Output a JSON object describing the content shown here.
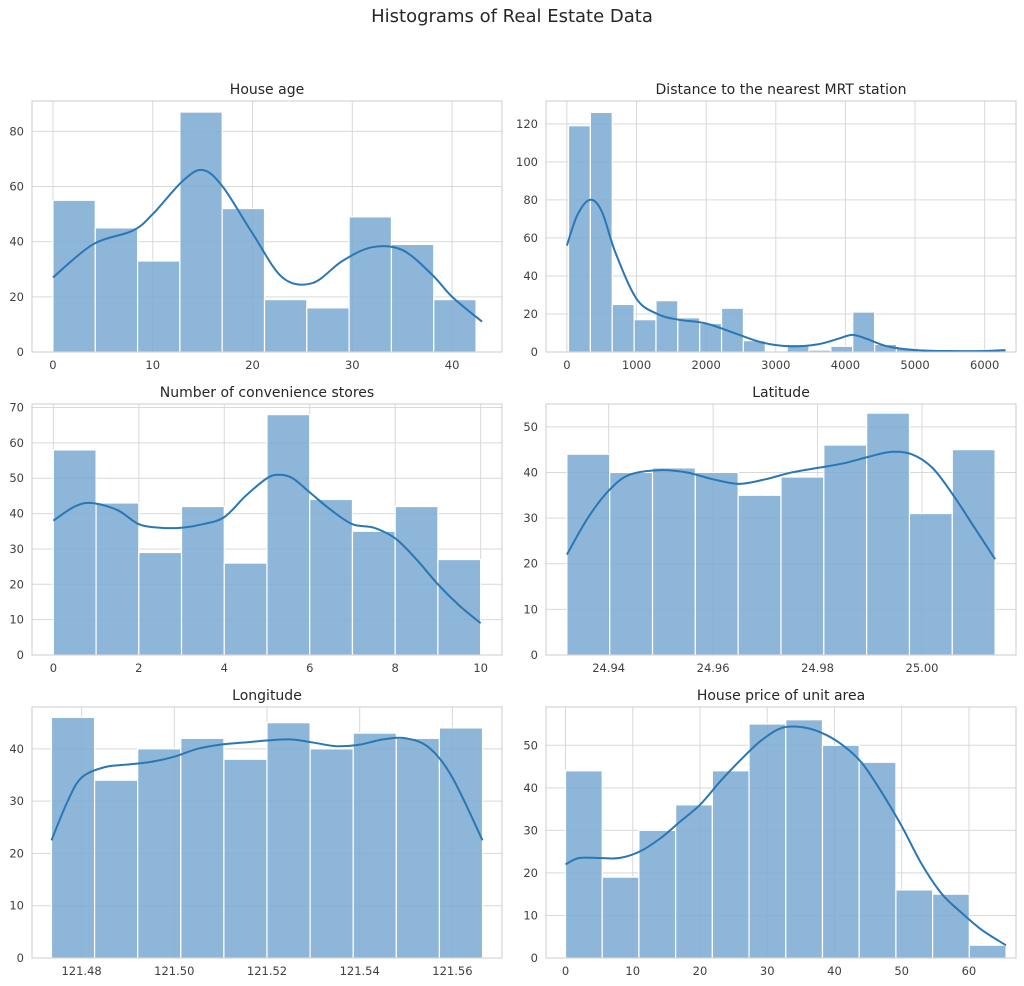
{
  "figure": {
    "title": "Histograms of Real Estate Data"
  },
  "chart_data": [
    {
      "type": "bar",
      "subtype": "histogram",
      "title": "House age",
      "xlabel": "",
      "ylabel": "",
      "xlim": [
        -2.1,
        45.0
      ],
      "ylim": [
        0,
        91
      ],
      "xticks": [
        0,
        10,
        20,
        30,
        40
      ],
      "xtick_labels": [
        "0",
        "10",
        "20",
        "30",
        "40"
      ],
      "yticks": [
        0,
        20,
        40,
        60,
        80
      ],
      "ytick_labels": [
        "0",
        "20",
        "40",
        "60",
        "80"
      ],
      "bin_edges": [
        0,
        4.24,
        8.48,
        12.72,
        16.96,
        21.2,
        25.44,
        29.68,
        33.92,
        38.16,
        42.4
      ],
      "values": [
        55,
        45,
        33,
        87,
        52,
        19,
        16,
        49,
        39,
        19
      ],
      "kde": {
        "x": [
          0,
          4,
          8,
          10,
          13,
          15,
          17,
          20,
          23,
          26,
          29,
          32,
          35,
          38,
          40,
          43
        ],
        "y": [
          27,
          39,
          44,
          50,
          62,
          66,
          60,
          43,
          27,
          25,
          33,
          38,
          37,
          28,
          20,
          11
        ]
      }
    },
    {
      "type": "bar",
      "subtype": "histogram",
      "title": "Distance to the nearest MRT station",
      "xlabel": "",
      "ylabel": "",
      "xlim": [
        -300,
        6450
      ],
      "ylim": [
        0,
        132
      ],
      "xticks": [
        0,
        1000,
        2000,
        3000,
        4000,
        5000,
        6000
      ],
      "xtick_labels": [
        "0",
        "1000",
        "2000",
        "3000",
        "4000",
        "5000",
        "6000"
      ],
      "yticks": [
        0,
        20,
        40,
        60,
        80,
        100,
        120
      ],
      "ytick_labels": [
        "0",
        "20",
        "40",
        "60",
        "80",
        "100",
        "120"
      ],
      "bin_edges": [
        23.4,
        337.4,
        651.4,
        965.4,
        1279.4,
        1593.4,
        1907.4,
        2221.4,
        2535.4,
        2849.4,
        3163.4,
        3477.4,
        3791.4,
        4105.4,
        4419.4,
        4733.4,
        5047.4,
        5361.4,
        5675.4,
        5989.4,
        6303.4
      ],
      "values": [
        119,
        126,
        25,
        17,
        27,
        18,
        15,
        23,
        6,
        0,
        4,
        1,
        3,
        21,
        4,
        2,
        0,
        0,
        0,
        1
      ],
      "kde": {
        "x": [
          0,
          150,
          330,
          500,
          700,
          1000,
          1300,
          1600,
          2000,
          2400,
          2800,
          3200,
          3600,
          3900,
          4100,
          4300,
          4600,
          5000,
          5500,
          6000,
          6300
        ],
        "y": [
          56,
          72,
          80,
          74,
          52,
          28,
          20,
          17,
          15,
          10,
          5,
          3,
          4,
          7,
          9,
          7,
          3,
          1,
          0.5,
          0.5,
          1
        ]
      }
    },
    {
      "type": "bar",
      "subtype": "histogram",
      "title": "Number of convenience stores",
      "xlabel": "",
      "ylabel": "",
      "xlim": [
        -0.5,
        10.5
      ],
      "ylim": [
        0,
        71
      ],
      "xticks": [
        0,
        2,
        4,
        6,
        8,
        10
      ],
      "xtick_labels": [
        "0",
        "2",
        "4",
        "6",
        "8",
        "10"
      ],
      "yticks": [
        0,
        10,
        20,
        30,
        40,
        50,
        60,
        70
      ],
      "ytick_labels": [
        "0",
        "10",
        "20",
        "30",
        "40",
        "50",
        "60",
        "70"
      ],
      "bin_edges": [
        0,
        1,
        2,
        3,
        4,
        5,
        6,
        7,
        8,
        9,
        10
      ],
      "values": [
        58,
        43,
        29,
        42,
        26,
        68,
        44,
        35,
        42,
        27
      ],
      "kde": {
        "x": [
          0,
          0.5,
          0.9,
          1.5,
          2,
          2.5,
          3,
          3.5,
          4,
          4.5,
          5,
          5.3,
          5.6,
          6,
          6.5,
          7,
          7.5,
          8,
          8.5,
          9,
          9.5,
          10
        ],
        "y": [
          38,
          42,
          43,
          41,
          37,
          36,
          36,
          37,
          39,
          45,
          50,
          51,
          50,
          46,
          41,
          37,
          36,
          33,
          27,
          20,
          14,
          9
        ]
      }
    },
    {
      "type": "bar",
      "subtype": "histogram",
      "title": "Latitude",
      "xlabel": "",
      "ylabel": "",
      "xlim": [
        24.928,
        25.018
      ],
      "ylim": [
        0,
        55
      ],
      "xticks": [
        24.94,
        24.96,
        24.98,
        25.0
      ],
      "xtick_labels": [
        "24.94",
        "24.96",
        "24.98",
        "25.00"
      ],
      "yticks": [
        0,
        10,
        20,
        30,
        40,
        50
      ],
      "ytick_labels": [
        "0",
        "10",
        "20",
        "30",
        "40",
        "50"
      ],
      "bin_edges": [
        24.932,
        24.9402,
        24.9484,
        24.9566,
        24.9648,
        24.973,
        24.9812,
        24.9894,
        24.9976,
        25.0058,
        25.014
      ],
      "values": [
        44,
        40,
        41,
        40,
        35,
        39,
        46,
        53,
        31,
        45
      ],
      "kde": {
        "x": [
          24.932,
          24.936,
          24.94,
          24.944,
          24.95,
          24.955,
          24.96,
          24.965,
          24.97,
          24.975,
          24.98,
          24.985,
          24.99,
          24.994,
          24.998,
          25.002,
          25.006,
          25.01,
          25.014
        ],
        "y": [
          22,
          30,
          36,
          39.5,
          40.5,
          40,
          38.5,
          37.5,
          38.5,
          40,
          41,
          42,
          43.5,
          44.5,
          44,
          41,
          35,
          28,
          21
        ]
      }
    },
    {
      "type": "bar",
      "subtype": "histogram",
      "title": "Longitude",
      "xlabel": "",
      "ylabel": "",
      "xlim": [
        121.4693,
        121.5707
      ],
      "ylim": [
        0,
        48
      ],
      "xticks": [
        121.48,
        121.5,
        121.52,
        121.54,
        121.56
      ],
      "xtick_labels": [
        "121.48",
        "121.50",
        "121.52",
        "121.54",
        "121.56"
      ],
      "yticks": [
        0,
        10,
        20,
        30,
        40
      ],
      "ytick_labels": [
        "0",
        "10",
        "20",
        "30",
        "40"
      ],
      "bin_edges": [
        121.4735,
        121.4828,
        121.4921,
        121.5014,
        121.5107,
        121.52,
        121.5293,
        121.5386,
        121.5479,
        121.5572,
        121.5665
      ],
      "values": [
        46,
        34,
        40,
        42,
        38,
        45,
        40,
        43,
        42,
        44
      ],
      "kde": {
        "x": [
          121.4735,
          121.477,
          121.48,
          121.485,
          121.49,
          121.495,
          121.5,
          121.505,
          121.51,
          121.515,
          121.52,
          121.525,
          121.53,
          121.535,
          121.54,
          121.545,
          121.55,
          121.555,
          121.56,
          121.5665
        ],
        "y": [
          22.5,
          30,
          34.5,
          36.5,
          37,
          37.5,
          38.5,
          40,
          40.8,
          41.2,
          41.6,
          41.8,
          41.2,
          40.5,
          40.8,
          41.8,
          42,
          40.2,
          34.5,
          22.5
        ]
      }
    },
    {
      "type": "bar",
      "subtype": "histogram",
      "title": "House price of unit area",
      "xlabel": "",
      "ylabel": "",
      "xlim": [
        -2.9,
        67.0
      ],
      "ylim": [
        0,
        59
      ],
      "xticks": [
        0,
        10,
        20,
        30,
        40,
        50,
        60
      ],
      "xtick_labels": [
        "0",
        "10",
        "20",
        "30",
        "40",
        "50",
        "60"
      ],
      "yticks": [
        0,
        10,
        20,
        30,
        40,
        50
      ],
      "ytick_labels": [
        "0",
        "10",
        "20",
        "30",
        "40",
        "50"
      ],
      "bin_edges": [
        0,
        5.46,
        10.92,
        16.38,
        21.84,
        27.3,
        32.76,
        38.22,
        43.68,
        49.14,
        54.6,
        60.06,
        65.52
      ],
      "values": [
        44,
        19,
        30,
        36,
        44,
        55,
        56,
        50,
        46,
        16,
        15,
        3
      ],
      "kde": {
        "x": [
          0,
          2,
          5,
          8,
          11,
          14,
          17,
          20,
          23,
          26,
          29,
          32,
          35,
          38,
          41,
          44,
          47,
          50,
          53,
          56,
          59,
          62,
          65.5
        ],
        "y": [
          22,
          23.5,
          23.5,
          23.5,
          25,
          28,
          32,
          36,
          41.5,
          46.5,
          51,
          54,
          54.3,
          53,
          50.3,
          46,
          39,
          31,
          22,
          15,
          10.5,
          6.5,
          3
        ]
      }
    }
  ]
}
